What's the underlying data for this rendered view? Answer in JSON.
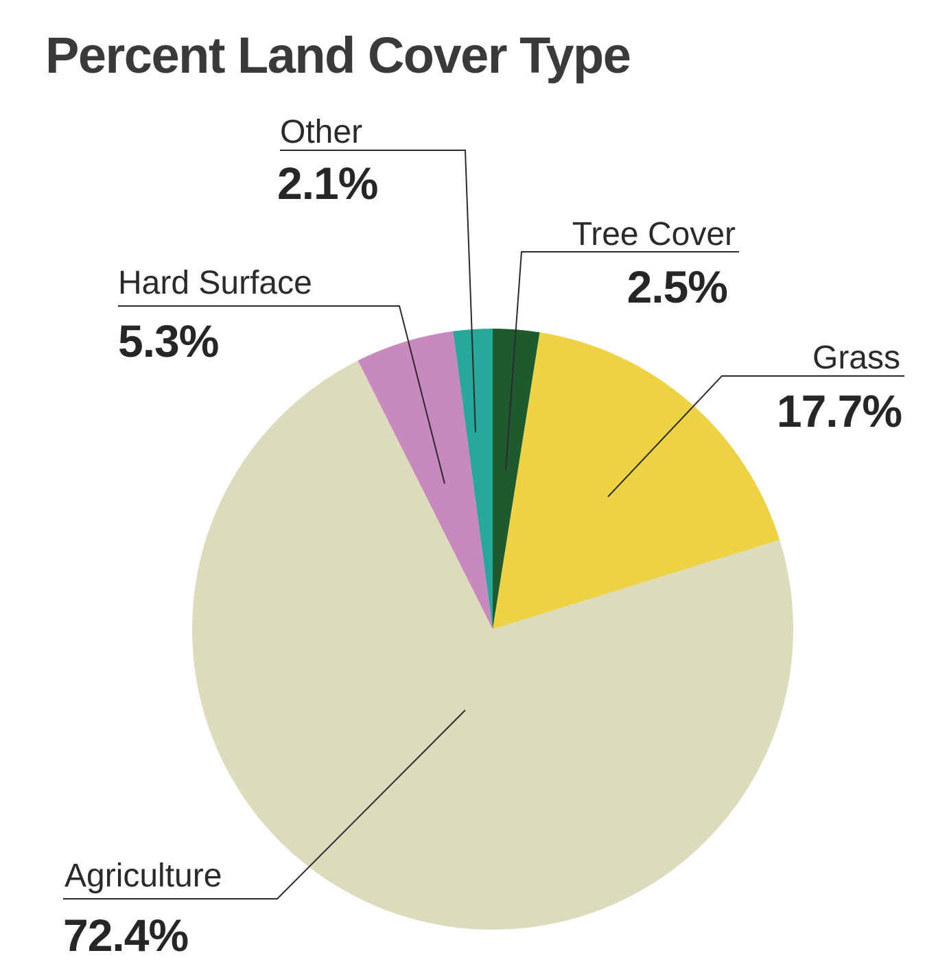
{
  "chart_data": {
    "type": "pie",
    "title": "Percent Land Cover Type",
    "slices": [
      {
        "label": "Tree Cover",
        "value": 2.5,
        "value_label": "2.5%",
        "color": "#1f5a2e"
      },
      {
        "label": "Grass",
        "value": 17.7,
        "value_label": "17.7%",
        "color": "#ecd244"
      },
      {
        "label": "Agriculture",
        "value": 72.4,
        "value_label": "72.4%",
        "color": "#dcdcbd"
      },
      {
        "label": "Hard Surface",
        "value": 5.3,
        "value_label": "5.3%",
        "color": "#c889bf"
      },
      {
        "label": "Other",
        "value": 2.1,
        "value_label": "2.1%",
        "color": "#26a89a"
      }
    ]
  }
}
